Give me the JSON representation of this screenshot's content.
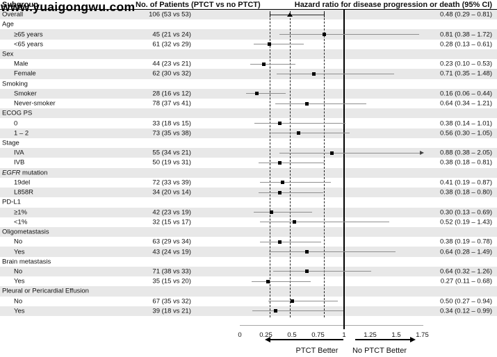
{
  "watermark": "www.yuaigongwu.com",
  "header": {
    "subgroup": "Subgroup",
    "patients": "No. of Patients (PTCT vs no PTCT)",
    "hazard": "Hazard ratio for disease progression or death (95% CI)"
  },
  "footer": {
    "left_label": "PTCT Better",
    "right_label": "No PTCT Better"
  },
  "colors": {
    "band": "#e8e8e8",
    "ci_line": "#8f8f8f",
    "marker": "#000000",
    "ref_line": "#000000"
  },
  "chart_data": {
    "type": "forest",
    "title": "Hazard ratio for disease progression or death (95% CI)",
    "x_axis": {
      "min": 0,
      "max": 1.75,
      "ticks": [
        "0",
        "0.25",
        "0.5",
        "0.75",
        "1",
        "1.25",
        "1.5",
        "1.75"
      ],
      "reference_line": 1,
      "dashed_lines": [
        0.29,
        0.48,
        0.81
      ],
      "grid": false
    },
    "rows": [
      {
        "label": "Overall",
        "indent": false,
        "count": "106 (53 vs 53)",
        "hr": 0.48,
        "lo": 0.29,
        "hi": 0.81,
        "ci_text": "0.48 (0.29 – 0.81)",
        "marker": "triangle",
        "caps": true
      },
      {
        "label": "Age",
        "indent": false
      },
      {
        "label": "≥65 years",
        "indent": true,
        "count": "45 (21 vs 24)",
        "hr": 0.81,
        "lo": 0.38,
        "hi": 1.72,
        "ci_text": "0.81 (0.38 – 1.72)",
        "marker": "square"
      },
      {
        "label": "<65 years",
        "indent": true,
        "count": "61 (32 vs 29)",
        "hr": 0.28,
        "lo": 0.13,
        "hi": 0.61,
        "ci_text": "0.28 (0.13 – 0.61)",
        "marker": "square"
      },
      {
        "label": "Sex",
        "indent": false
      },
      {
        "label": "Male",
        "indent": true,
        "count": "44 (23 vs 21)",
        "hr": 0.23,
        "lo": 0.1,
        "hi": 0.53,
        "ci_text": "0.23 (0.10 – 0.53)",
        "marker": "square"
      },
      {
        "label": "Female",
        "indent": true,
        "count": "62 (30 vs 32)",
        "hr": 0.71,
        "lo": 0.35,
        "hi": 1.48,
        "ci_text": "0.71 (0.35 – 1.48)",
        "marker": "square"
      },
      {
        "label": "Smoking",
        "indent": false
      },
      {
        "label": "Smoker",
        "indent": true,
        "count": "28 (16 vs 12)",
        "hr": 0.16,
        "lo": 0.06,
        "hi": 0.44,
        "ci_text": "0.16 (0.06 – 0.44)",
        "marker": "square"
      },
      {
        "label": "Never-smoker",
        "indent": true,
        "count": "78 (37 vs 41)",
        "hr": 0.64,
        "lo": 0.34,
        "hi": 1.21,
        "ci_text": "0.64 (0.34 – 1.21)",
        "marker": "square"
      },
      {
        "label": "ECOG PS",
        "indent": false
      },
      {
        "label": "0",
        "indent": true,
        "count": "33 (18 vs 15)",
        "hr": 0.38,
        "lo": 0.14,
        "hi": 1.01,
        "ci_text": "0.38 (0.14 – 1.01)",
        "marker": "square"
      },
      {
        "label": "1 – 2",
        "indent": true,
        "count": "73 (35 vs 38)",
        "hr": 0.56,
        "lo": 0.3,
        "hi": 1.05,
        "ci_text": "0.56 (0.30 – 1.05)",
        "marker": "square"
      },
      {
        "label": "Stage",
        "indent": false
      },
      {
        "label": "IVA",
        "indent": true,
        "count": "55 (34 vs 21)",
        "hr": 0.88,
        "lo": 0.38,
        "hi": 2.05,
        "ci_text": "0.88 (0.38 – 2.05)",
        "marker": "square",
        "arrow_right": true
      },
      {
        "label": "IVB",
        "indent": true,
        "count": "50 (19 vs 31)",
        "hr": 0.38,
        "lo": 0.18,
        "hi": 0.81,
        "ci_text": "0.38 (0.18 – 0.81)",
        "marker": "square"
      },
      {
        "label": "EGFR mutation",
        "em": "EGFR",
        "indent": false
      },
      {
        "label": "19del",
        "indent": true,
        "count": "72 (33 vs 39)",
        "hr": 0.41,
        "lo": 0.19,
        "hi": 0.87,
        "ci_text": "0.41 (0.19 – 0.87)",
        "marker": "square"
      },
      {
        "label": "L858R",
        "indent": true,
        "count": "34 (20 vs 14)",
        "hr": 0.38,
        "lo": 0.18,
        "hi": 0.8,
        "ci_text": "0.38 (0.18 – 0.80)",
        "marker": "square"
      },
      {
        "label": "PD-L1",
        "indent": false
      },
      {
        "label": "≥1%",
        "indent": true,
        "count": "42 (23 vs 19)",
        "hr": 0.3,
        "lo": 0.13,
        "hi": 0.69,
        "ci_text": "0.30 (0.13 – 0.69)",
        "marker": "square"
      },
      {
        "label": "<1%",
        "indent": true,
        "count": "32 (15 vs 17)",
        "hr": 0.52,
        "lo": 0.19,
        "hi": 1.43,
        "ci_text": "0.52 (0.19 – 1.43)",
        "marker": "square"
      },
      {
        "label": "Oligometastasis",
        "indent": false
      },
      {
        "label": "No",
        "indent": true,
        "count": "63 (29 vs 34)",
        "hr": 0.38,
        "lo": 0.19,
        "hi": 0.78,
        "ci_text": "0.38 (0.19 – 0.78)",
        "marker": "square"
      },
      {
        "label": "Yes",
        "indent": true,
        "count": "43 (24 vs 19)",
        "hr": 0.64,
        "lo": 0.28,
        "hi": 1.49,
        "ci_text": "0.64 (0.28 – 1.49)",
        "marker": "square"
      },
      {
        "label": "Brain metastasis",
        "indent": false
      },
      {
        "label": "No",
        "indent": true,
        "count": "71 (38 vs 33)",
        "hr": 0.64,
        "lo": 0.32,
        "hi": 1.26,
        "ci_text": "0.64 (0.32 – 1.26)",
        "marker": "square"
      },
      {
        "label": "Yes",
        "indent": true,
        "count": "35 (15 vs 20)",
        "hr": 0.27,
        "lo": 0.11,
        "hi": 0.68,
        "ci_text": "0.27 (0.11 – 0.68)",
        "marker": "square"
      },
      {
        "label": "Pleural or Pericardial Effusion",
        "indent": false
      },
      {
        "label": "No",
        "indent": true,
        "count": "67 (35 vs 32)",
        "hr": 0.5,
        "lo": 0.27,
        "hi": 0.94,
        "ci_text": "0.50 (0.27 – 0.94)",
        "marker": "square"
      },
      {
        "label": "Yes",
        "indent": true,
        "count": "39 (18 vs 21)",
        "hr": 0.34,
        "lo": 0.12,
        "hi": 0.99,
        "ci_text": "0.34 (0.12 – 0.99)",
        "marker": "square"
      }
    ]
  }
}
